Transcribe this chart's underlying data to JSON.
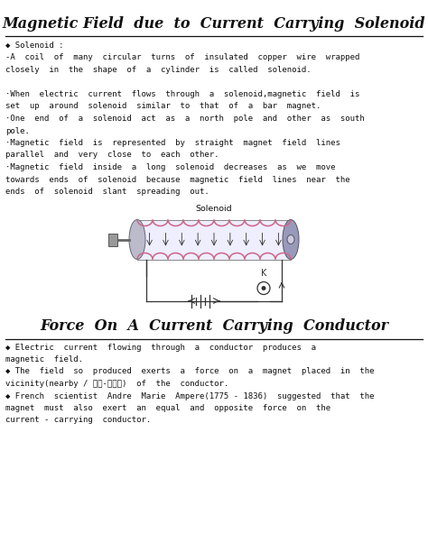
{
  "bg_color": "#ffffff",
  "text_color": "#111111",
  "title1": "Magnetic Field  due  to  Current  Carrying  Solenoid",
  "title2": "Force  On  A  Current  Carrying  Conductor",
  "title_fontsize": 11.5,
  "body_fontsize": 6.5,
  "label_fontsize": 6.8,
  "section1_lines": [
    [
      "◆ Solenoid :",
      false
    ],
    [
      "-A  coil  of  many  circular  turns  of  insulated  copper  wire  wrapped",
      false
    ],
    [
      "closely  in  the  shape  of  a  cylinder  is  called  solenoid.",
      false
    ],
    [
      "",
      false
    ],
    [
      "·When  electric  current  flows  through  a  solenoid,magnetic  field  is",
      false
    ],
    [
      "set  up  around  solenoid  similar  to  that  of  a  bar  magnet.",
      false
    ],
    [
      "·One  end  of  a  solenoid  act  as  a  north  pole  and  other  as  south",
      false
    ],
    [
      "pole.",
      false
    ],
    [
      "·Magnetic  field  is  represented  by  straight  magnet  field  lines",
      false
    ],
    [
      "parallel  and  very  close  to  each  other.",
      false
    ],
    [
      "·Magnetic  field  inside  a  long  solenoid  decreases  as  we  move",
      false
    ],
    [
      "towards  ends  of  solenoid  because  magnetic  field  lines  near  the",
      false
    ],
    [
      "ends  of  solenoid  slant  spreading  out.",
      false
    ]
  ],
  "section2_lines": [
    "◆ Electric  current  flowing  through  a  conductor  produces  a",
    "magnetic  field.",
    "◆ The  field  so  produced  exerts  a  force  on  a  magnet  placed  in  the",
    "vicinity(nearby / आस-पास)  of  the  conductor.",
    "◆ French  scientist  Andre  Marie  Ampere(1775 - 1836)  suggested  that  the",
    "magnet  must  also  exert  an  equal  and  opposite  force  on  the",
    "current - carrying  conductor."
  ],
  "sol_label": "Solenoid",
  "key_label": "K",
  "coil_color": "#cc6688",
  "body_fill": "#eeeeff",
  "cap_fill": "#aaaacc",
  "cap_fill2": "#9999bb",
  "wire_color": "#333333"
}
